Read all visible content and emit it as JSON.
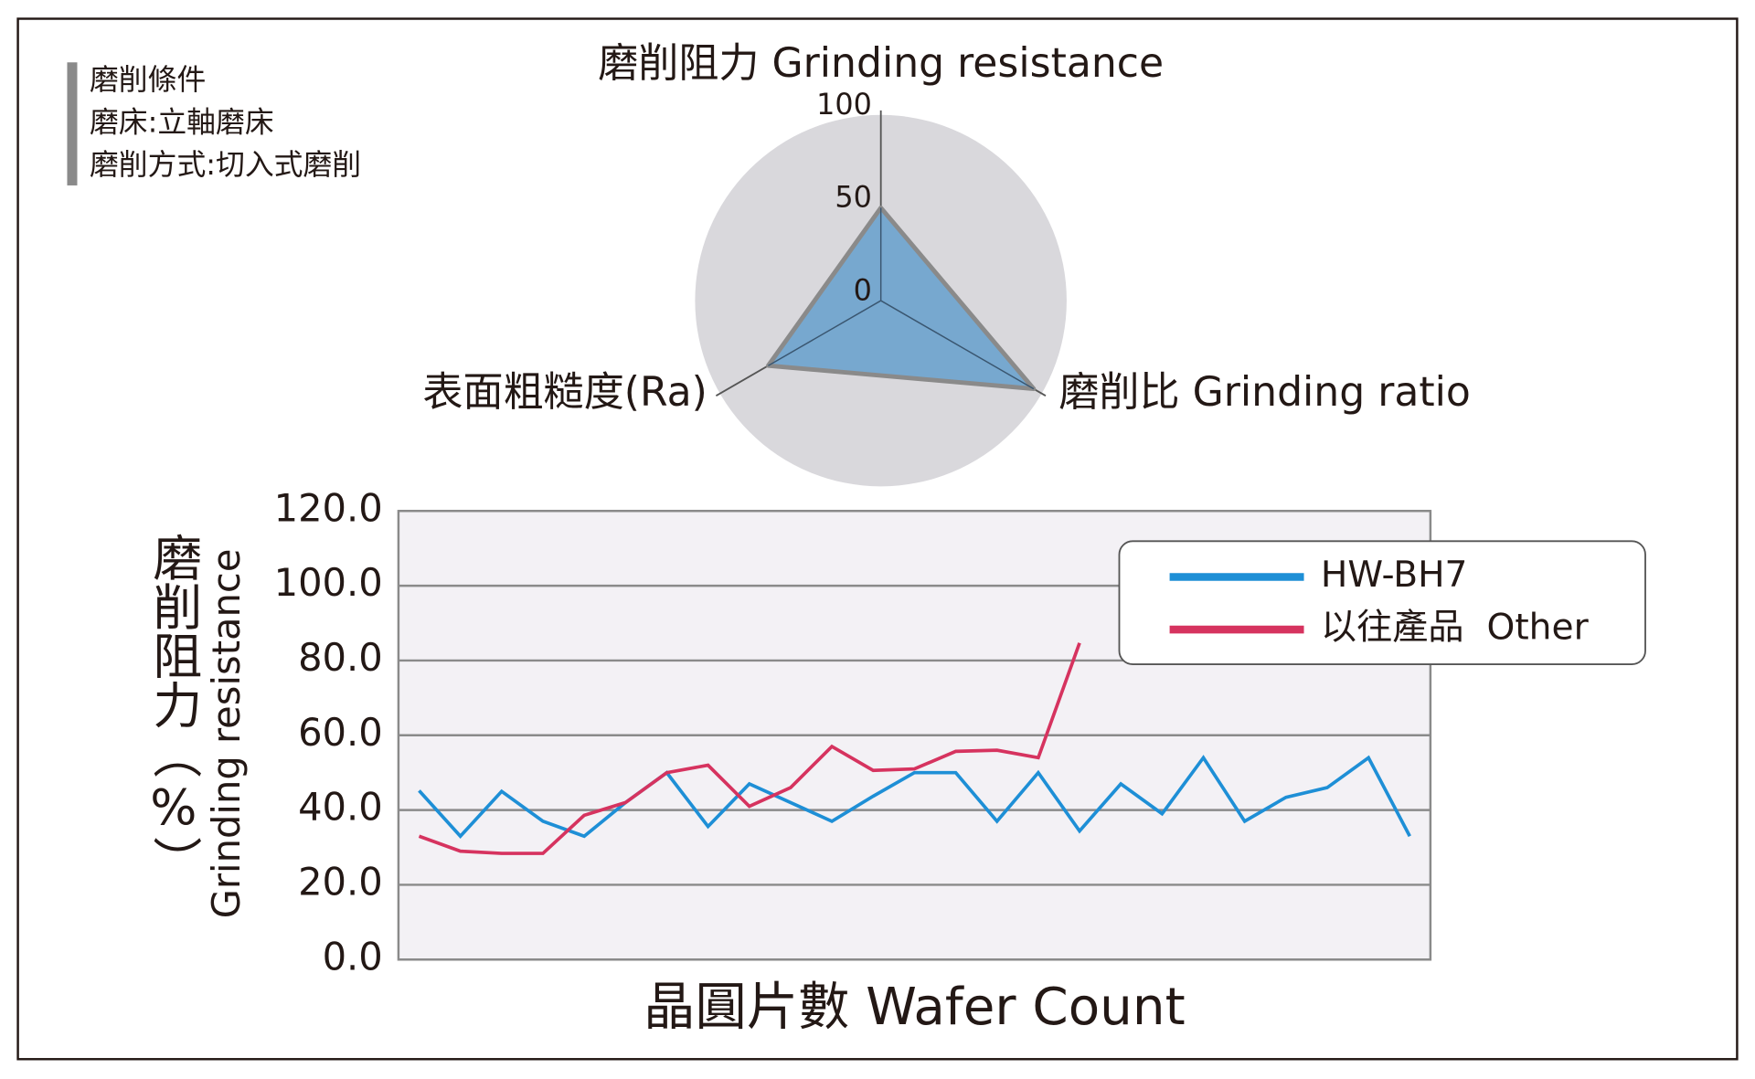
{
  "notes": [
    "磨削條件",
    "磨床:立軸磨床",
    "磨削方式:切入式磨削"
  ],
  "chart_data": [
    {
      "type": "radar",
      "title": "磨削阻力 Grinding resistance",
      "axes": [
        "磨削阻力 Grinding resistance",
        "磨削比 Grinding ratio",
        "表面粗糙度(Ra)"
      ],
      "values": [
        50,
        95,
        70
      ],
      "color": "#77a8cf",
      "rlim": [
        0,
        100
      ],
      "rticks": [
        0,
        50,
        100
      ]
    },
    {
      "type": "line",
      "xlabel": "晶圓片數 Wafer Count",
      "ylabel": "磨削阻力（%）",
      "ylabel_en": "Grinding resistance",
      "categories": [
        null,
        null,
        null,
        null,
        null,
        null,
        null,
        null,
        null,
        null,
        null,
        null,
        null,
        null,
        null,
        null,
        null,
        null,
        null,
        null,
        null,
        null,
        null,
        null,
        null
      ],
      "series": [
        {
          "name": "HW-BH7",
          "color": "#1e8fd6",
          "values": [
            45.2,
            33,
            45,
            37,
            33,
            42,
            50,
            35.6,
            47,
            42,
            37,
            43.7,
            50,
            50,
            37,
            50,
            34.4,
            47,
            39,
            54,
            37,
            43.4,
            46,
            54,
            33
          ]
        },
        {
          "name": "以往產品  Other",
          "color": "#d6335f",
          "values": [
            33,
            29,
            28.4,
            28.4,
            38.6,
            42,
            50,
            52,
            41,
            46,
            57,
            50.6,
            51,
            55.7,
            56,
            54,
            84.7,
            null,
            null,
            null,
            null,
            null,
            null,
            null,
            null
          ]
        }
      ],
      "ylim": [
        0,
        120
      ],
      "yticks": [
        {
          "value": 0,
          "label": "0.0"
        },
        {
          "value": 20,
          "label": "20.0"
        },
        {
          "value": 40,
          "label": "40.0"
        },
        {
          "value": 60,
          "label": "60.0"
        },
        {
          "value": 80,
          "label": "80.0"
        },
        {
          "value": 100,
          "label": "100.0"
        },
        {
          "value": 120,
          "label": "120.0"
        }
      ],
      "grid": true,
      "legend": "upper right"
    }
  ]
}
